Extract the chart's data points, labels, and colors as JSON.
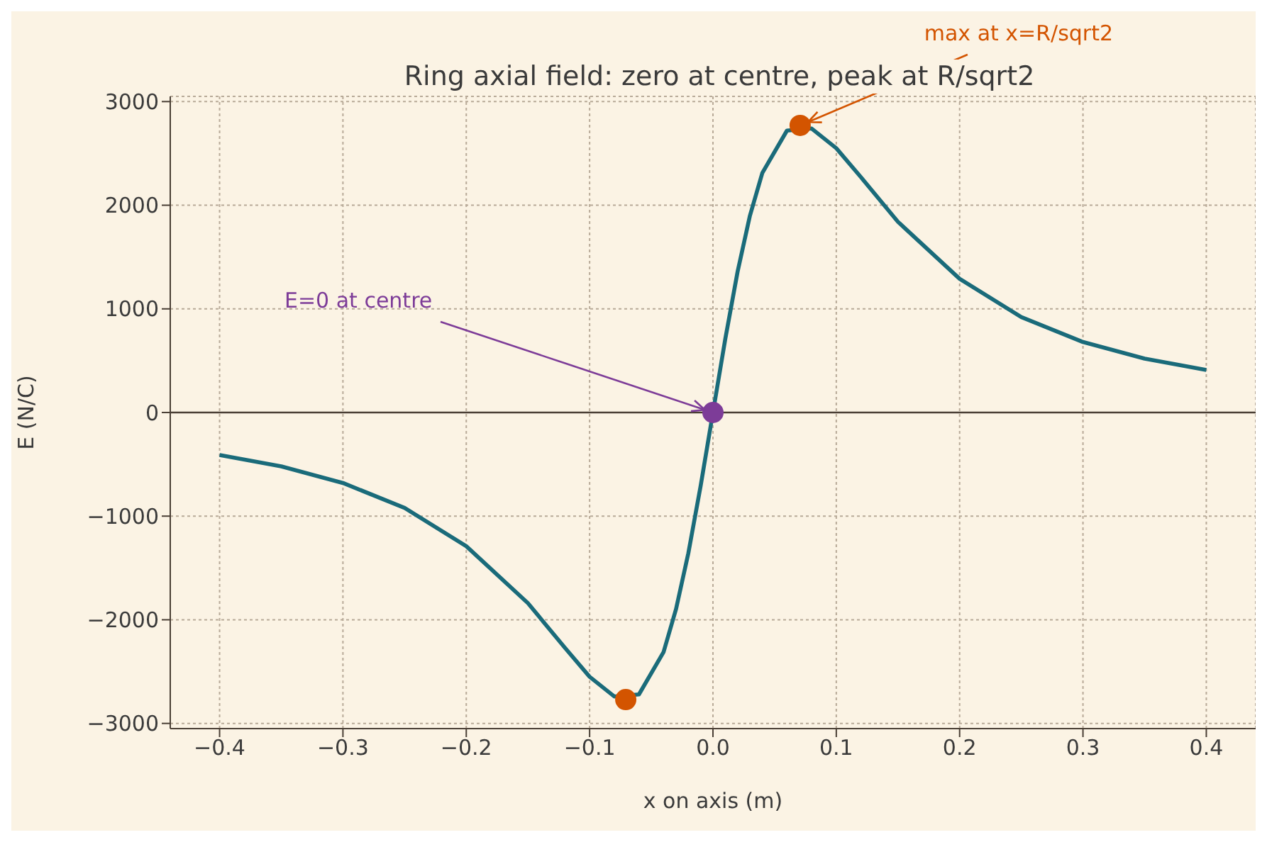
{
  "chart_data": {
    "type": "line",
    "title": "Ring axial field: zero at centre, peak at R/sqrt2",
    "xlabel": "x on axis (m)",
    "ylabel": "E (N/C)",
    "xlim": [
      -0.44,
      0.44
    ],
    "ylim": [
      -3050,
      3050
    ],
    "xticks": [
      {
        "value": -0.4,
        "label": "−0.4"
      },
      {
        "value": -0.3,
        "label": "−0.3"
      },
      {
        "value": -0.2,
        "label": "−0.2"
      },
      {
        "value": -0.1,
        "label": "−0.1"
      },
      {
        "value": 0,
        "label": "0.0"
      },
      0.1,
      0.2,
      0.3,
      0.4
    ],
    "yticks": [
      {
        "value": -3000,
        "label": "−3000"
      },
      {
        "value": -2000,
        "label": "−2000"
      },
      {
        "value": -1000,
        "label": "−1000"
      },
      0,
      1000,
      2000,
      3000
    ],
    "grid": true,
    "line_style": "solid",
    "marker": "none",
    "series": [
      {
        "color": "#1a6b7a",
        "x": [
          -0.4,
          -0.35,
          -0.3,
          -0.25,
          -0.2,
          -0.15,
          -0.12,
          -0.1,
          -0.08,
          -0.06,
          -0.04,
          -0.03,
          -0.02,
          -0.01,
          0,
          0.01,
          0.02,
          0.03,
          0.04,
          0.06,
          0.08,
          0.1,
          0.12,
          0.15,
          0.2,
          0.25,
          0.3,
          0.35,
          0.4
        ],
        "values": [
          -410,
          -520,
          -680,
          -920,
          -1290,
          -1840,
          -2270,
          -2550,
          -2740,
          -2720,
          -2310,
          -1900,
          -1360,
          -710,
          0,
          710,
          1360,
          1900,
          2310,
          2720,
          2740,
          2550,
          2270,
          1840,
          1290,
          920,
          680,
          520,
          410
        ]
      },
      {
        "type": "scatter",
        "color": "#d35400",
        "marker": "circle",
        "x": [
          -0.0707,
          0.0707
        ],
        "values": [
          -2770,
          2770
        ]
      },
      {
        "type": "scatter",
        "color": "#7d3c98",
        "marker": "circle",
        "x": [
          0
        ],
        "values": [
          0
        ]
      }
    ],
    "ref_lines": [
      {
        "axis": "y",
        "value": 0,
        "color": "#4a3f35"
      }
    ],
    "annotations": [
      {
        "text": "max at x=R/sqrt2",
        "x": 0.0707,
        "y": 2770
      },
      {
        "text": "E=0 at centre",
        "x": 0,
        "y": 0
      }
    ]
  }
}
